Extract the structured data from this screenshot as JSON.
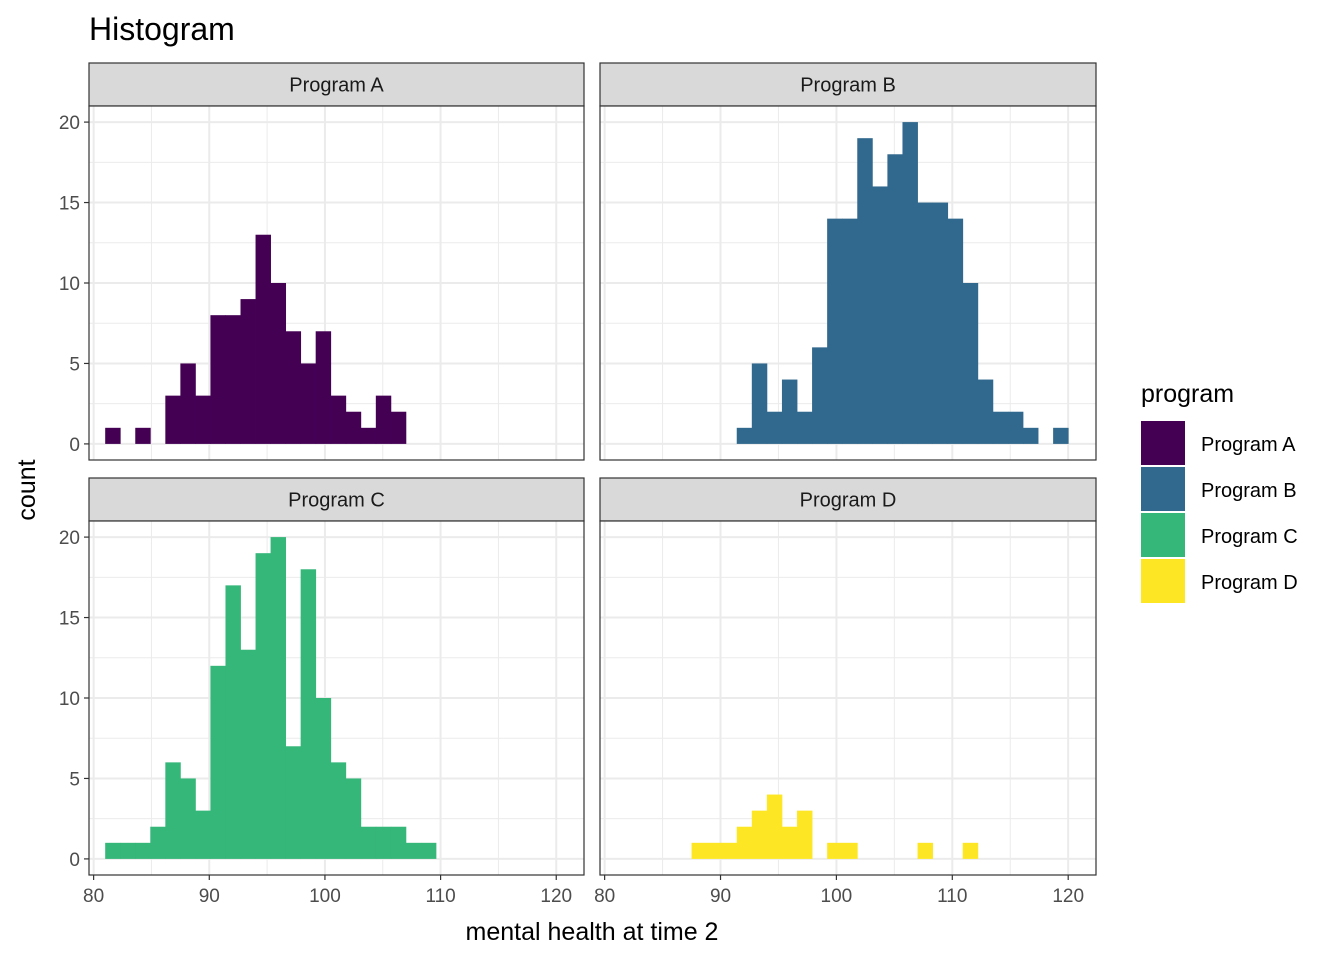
{
  "chart_data": {
    "type": "bar",
    "subtype": "faceted-histogram",
    "title": "Histogram",
    "xlabel": "mental health at time 2",
    "ylabel": "count",
    "xlim": [
      79.6,
      122.4
    ],
    "ylim": [
      -1.0,
      21.0
    ],
    "x_ticks": [
      80,
      90,
      100,
      110,
      120
    ],
    "y_ticks": [
      0,
      5,
      10,
      15,
      20
    ],
    "bin_width": 1.3,
    "grid": true,
    "legend": {
      "title": "program",
      "position": "right",
      "entries": [
        "Program A",
        "Program B",
        "Program C",
        "Program D"
      ]
    },
    "facets": [
      {
        "name": "Program A",
        "color": "#440154",
        "bin_start": 81.0,
        "counts": [
          1,
          0,
          1,
          0,
          3,
          5,
          3,
          8,
          8,
          9,
          13,
          10,
          7,
          5,
          7,
          3,
          2,
          1,
          3,
          2
        ]
      },
      {
        "name": "Program B",
        "color": "#31688E",
        "bin_start": 91.4,
        "counts": [
          1,
          5,
          2,
          4,
          2,
          6,
          14,
          14,
          19,
          16,
          18,
          20,
          15,
          15,
          14,
          10,
          4,
          2,
          2,
          1,
          0,
          1
        ]
      },
      {
        "name": "Program C",
        "color": "#35B779",
        "bin_start": 81.0,
        "counts": [
          1,
          1,
          1,
          2,
          6,
          5,
          3,
          12,
          17,
          13,
          19,
          20,
          7,
          18,
          10,
          6,
          5,
          2,
          2,
          2,
          1,
          1
        ]
      },
      {
        "name": "Program D",
        "color": "#FDE725",
        "bin_start": 87.5,
        "counts": [
          1,
          1,
          1,
          2,
          3,
          4,
          2,
          3,
          0,
          1,
          1,
          0,
          0,
          0,
          0,
          1,
          0,
          0,
          1
        ]
      }
    ]
  }
}
